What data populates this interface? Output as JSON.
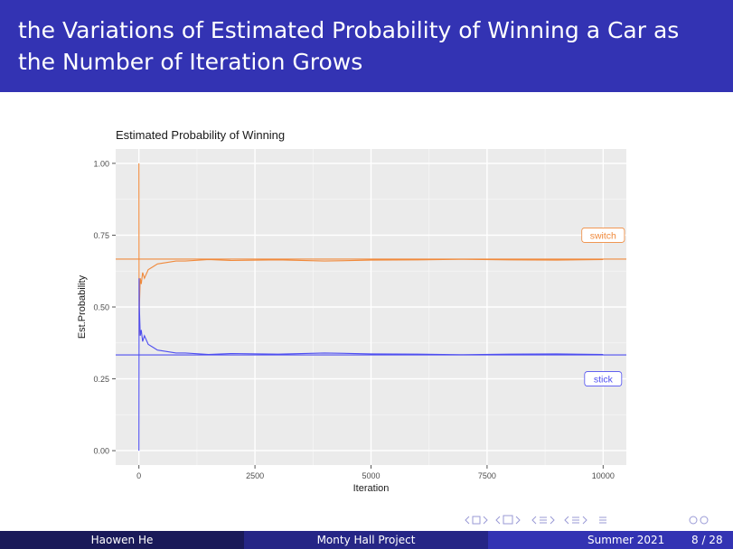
{
  "slide": {
    "title": "the Variations of Estimated Probability of Winning a Car as the Number of Iteration Grows"
  },
  "footer": {
    "author": "Haowen He",
    "project": "Monty Hall Project",
    "date": "Summer 2021",
    "page": "8 / 28"
  },
  "colors": {
    "title_bar": "#3333b3",
    "switch": "#f08a3c",
    "stick": "#4f4ff0",
    "panel": "#ebebeb"
  },
  "chart_data": {
    "type": "line",
    "title": "Estimated Probability of Winning",
    "xlabel": "Iteration",
    "ylabel": "Est.Probability",
    "xlim": [
      -500,
      10500
    ],
    "ylim": [
      -0.05,
      1.05
    ],
    "xticks": [
      0,
      2500,
      5000,
      7500,
      10000
    ],
    "xtick_labels": [
      "0",
      "2500",
      "5000",
      "7500",
      "10000"
    ],
    "yticks": [
      0,
      0.25,
      0.5,
      0.75,
      1.0
    ],
    "ytick_labels": [
      "0.00",
      "0.25",
      "0.50",
      "0.75",
      "1.00"
    ],
    "grid": true,
    "legend": "none",
    "series": [
      {
        "name": "switch",
        "x": [
          1,
          5,
          10,
          20,
          30,
          50,
          80,
          120,
          200,
          300,
          400,
          600,
          800,
          1000,
          1500,
          2000,
          3000,
          4000,
          5000,
          6000,
          7000,
          8000,
          9000,
          10000
        ],
        "y": [
          1.0,
          0.4,
          0.5,
          0.55,
          0.6,
          0.58,
          0.62,
          0.6,
          0.63,
          0.64,
          0.65,
          0.655,
          0.66,
          0.66,
          0.665,
          0.662,
          0.664,
          0.66,
          0.663,
          0.664,
          0.666,
          0.664,
          0.663,
          0.665
        ]
      },
      {
        "name": "stick",
        "x": [
          1,
          5,
          10,
          20,
          30,
          50,
          80,
          120,
          200,
          300,
          400,
          600,
          800,
          1000,
          1500,
          2000,
          3000,
          4000,
          5000,
          6000,
          7000,
          8000,
          9000,
          10000
        ],
        "y": [
          0.0,
          0.6,
          0.5,
          0.45,
          0.4,
          0.42,
          0.38,
          0.4,
          0.37,
          0.36,
          0.35,
          0.345,
          0.34,
          0.34,
          0.335,
          0.338,
          0.336,
          0.34,
          0.337,
          0.336,
          0.334,
          0.336,
          0.337,
          0.335
        ]
      }
    ],
    "reference_lines": [
      {
        "name": "switch",
        "y": 0.6667
      },
      {
        "name": "stick",
        "y": 0.3333
      }
    ],
    "annotations": [
      {
        "text": "switch",
        "x": 10000,
        "y": 0.75
      },
      {
        "text": "stick",
        "x": 10000,
        "y": 0.25
      }
    ]
  }
}
